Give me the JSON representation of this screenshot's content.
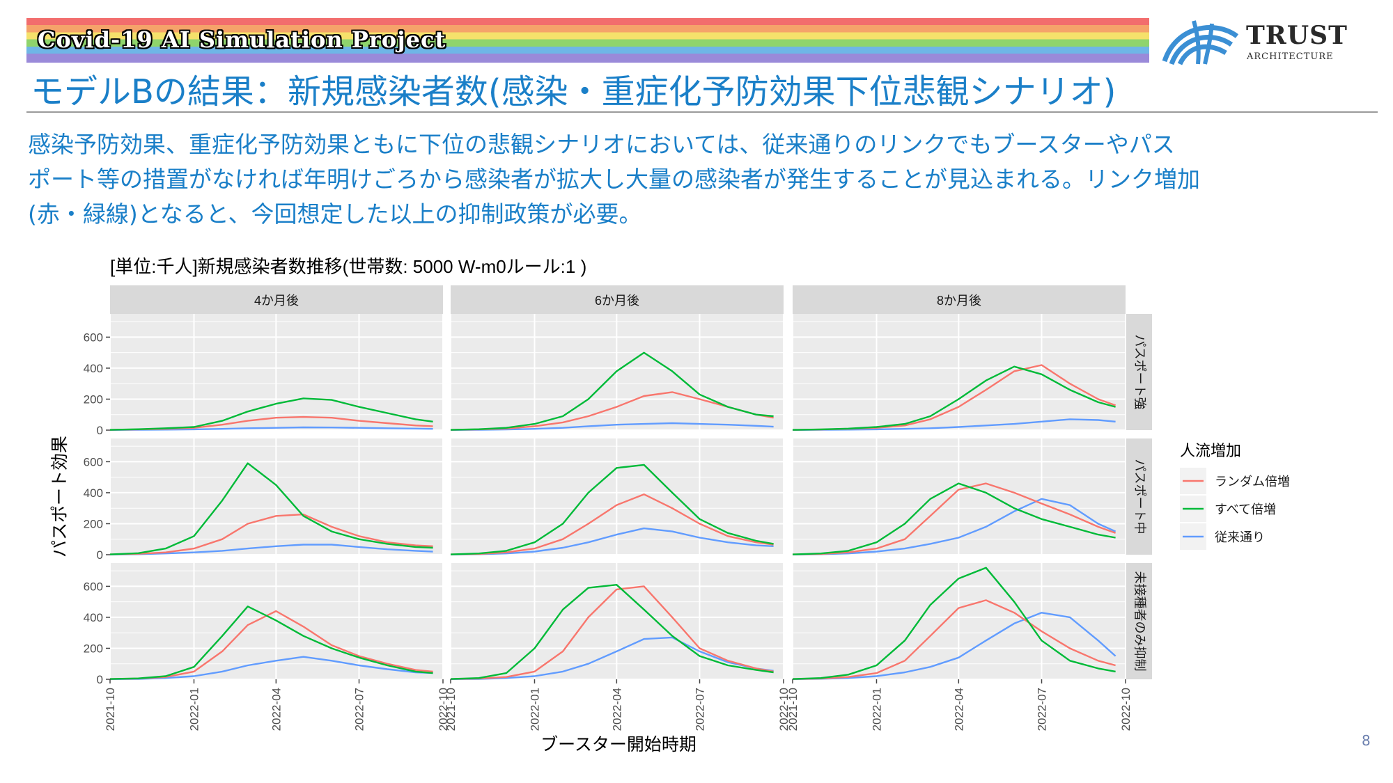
{
  "header": {
    "project_title": "Covid-19 AI Simulation Project",
    "page_title": "モデルBの結果：新規感染者数(感染・重症化予防効果下位悲観シナリオ)",
    "logo_name": "TRUST",
    "logo_sub": "ARCHITECTURE"
  },
  "lead_lines": [
    "感染予防効果、重症化予防効果ともに下位の悲観シナリオにおいては、従来通りのリンクでもブースターやパス",
    "ポート等の措置がなければ年明けごろから感染者が拡大し大量の感染者が発生することが見込まれる。リンク増加",
    "(赤・緑線)となると、今回想定した以上の抑制政策が必要。"
  ],
  "page_number": "8",
  "colors": {
    "accent": "#1a7fc8",
    "random": "#F8766D",
    "all": "#00BA38",
    "default": "#619CFF",
    "panel_bg": "#EBEBEB",
    "strip_bg": "#D9D9D9"
  },
  "chart_data": {
    "type": "line",
    "title": "[単位:千人]新規感染者数推移(世帯数: 5000 W-m0ルール:1 )",
    "xlabel": "ブースター開始時期",
    "ylabel": "パスポート効果",
    "x_ticks": [
      "2021-10",
      "2022-01",
      "2022-04",
      "2022-07",
      "2022-10"
    ],
    "y_ticks": [
      0,
      200,
      400,
      600
    ],
    "xlim": [
      "2021-10-01",
      "2022-10-01"
    ],
    "ylim": [
      0,
      750
    ],
    "grid": true,
    "columns": [
      "4か月後",
      "6か月後",
      "8か月後"
    ],
    "rows": [
      "パスポート強",
      "パスポート中",
      "未接種者のみ抑制"
    ],
    "legend": {
      "title": "人流増加",
      "position": "right",
      "entries": [
        "ランダム倍増",
        "すべて倍増",
        "従来通り"
      ]
    },
    "series_x": [
      "2021-10-01",
      "2021-11-01",
      "2021-12-01",
      "2022-01-01",
      "2022-02-01",
      "2022-03-01",
      "2022-04-01",
      "2022-05-01",
      "2022-06-01",
      "2022-07-01",
      "2022-08-01",
      "2022-09-01",
      "2022-09-20"
    ],
    "panels": [
      {
        "row": "パスポート強",
        "col": "4か月後",
        "series": [
          {
            "name": "ランダム倍増",
            "values": [
              2,
              5,
              8,
              15,
              35,
              60,
              80,
              85,
              80,
              60,
              45,
              30,
              25
            ]
          },
          {
            "name": "すべて倍増",
            "values": [
              2,
              6,
              12,
              20,
              60,
              120,
              170,
              205,
              195,
              150,
              110,
              70,
              55
            ]
          },
          {
            "name": "従来通り",
            "values": [
              1,
              2,
              3,
              5,
              8,
              12,
              15,
              18,
              17,
              15,
              12,
              10,
              8
            ]
          }
        ]
      },
      {
        "row": "パスポート強",
        "col": "6か月後",
        "series": [
          {
            "name": "ランダム倍増",
            "values": [
              2,
              5,
              10,
              25,
              50,
              90,
              150,
              220,
              245,
              200,
              150,
              100,
              80
            ]
          },
          {
            "name": "すべて倍増",
            "values": [
              2,
              6,
              15,
              40,
              90,
              200,
              380,
              500,
              380,
              230,
              150,
              100,
              90
            ]
          },
          {
            "name": "従来通り",
            "values": [
              1,
              2,
              4,
              8,
              15,
              25,
              35,
              40,
              45,
              40,
              35,
              28,
              22
            ]
          }
        ]
      },
      {
        "row": "パスポート強",
        "col": "8か月後",
        "series": [
          {
            "name": "ランダム倍増",
            "values": [
              2,
              4,
              8,
              15,
              30,
              70,
              150,
              260,
              380,
              420,
              300,
              200,
              160
            ]
          },
          {
            "name": "すべて倍増",
            "values": [
              2,
              5,
              10,
              20,
              40,
              90,
              200,
              320,
              410,
              360,
              260,
              180,
              150
            ]
          },
          {
            "name": "従来通り",
            "values": [
              1,
              2,
              3,
              5,
              8,
              12,
              20,
              30,
              40,
              55,
              70,
              65,
              55
            ]
          }
        ]
      },
      {
        "row": "パスポート中",
        "col": "4か月後",
        "series": [
          {
            "name": "ランダム倍増",
            "values": [
              2,
              6,
              15,
              40,
              100,
              200,
              250,
              260,
              180,
              120,
              80,
              60,
              55
            ]
          },
          {
            "name": "すべて倍増",
            "values": [
              2,
              10,
              40,
              120,
              350,
              590,
              450,
              250,
              150,
              100,
              70,
              50,
              45
            ]
          },
          {
            "name": "従来通り",
            "values": [
              1,
              3,
              8,
              15,
              25,
              40,
              55,
              65,
              65,
              50,
              35,
              25,
              20
            ]
          }
        ]
      },
      {
        "row": "パスポート中",
        "col": "6か月後",
        "series": [
          {
            "name": "ランダム倍増",
            "values": [
              2,
              5,
              15,
              40,
              100,
              200,
              320,
              390,
              300,
              200,
              120,
              80,
              65
            ]
          },
          {
            "name": "すべて倍増",
            "values": [
              2,
              8,
              25,
              80,
              200,
              400,
              560,
              580,
              400,
              230,
              140,
              90,
              70
            ]
          },
          {
            "name": "従来通り",
            "values": [
              1,
              3,
              8,
              20,
              45,
              80,
              130,
              170,
              150,
              110,
              80,
              60,
              55
            ]
          }
        ]
      },
      {
        "row": "パスポート中",
        "col": "8か月後",
        "series": [
          {
            "name": "ランダム倍増",
            "values": [
              2,
              5,
              15,
              40,
              100,
              250,
              420,
              460,
              400,
              330,
              260,
              180,
              140
            ]
          },
          {
            "name": "すべて倍増",
            "values": [
              2,
              8,
              25,
              80,
              200,
              360,
              460,
              400,
              300,
              230,
              180,
              130,
              110
            ]
          },
          {
            "name": "従来通り",
            "values": [
              1,
              3,
              8,
              20,
              40,
              70,
              110,
              180,
              280,
              360,
              320,
              200,
              150
            ]
          }
        ]
      },
      {
        "row": "未接種者のみ抑制",
        "col": "4か月後",
        "series": [
          {
            "name": "ランダム倍増",
            "values": [
              2,
              5,
              15,
              50,
              180,
              350,
              440,
              340,
              220,
              150,
              100,
              60,
              50
            ]
          },
          {
            "name": "すべて倍増",
            "values": [
              2,
              6,
              20,
              80,
              280,
              470,
              380,
              280,
              200,
              140,
              90,
              50,
              40
            ]
          },
          {
            "name": "従来通り",
            "values": [
              1,
              2,
              8,
              20,
              50,
              90,
              120,
              145,
              120,
              90,
              65,
              45,
              40
            ]
          }
        ]
      },
      {
        "row": "未接種者のみ抑制",
        "col": "6か月後",
        "series": [
          {
            "name": "ランダム倍増",
            "values": [
              2,
              5,
              15,
              50,
              180,
              400,
              580,
              600,
              400,
              200,
              120,
              70,
              50
            ]
          },
          {
            "name": "すべて倍増",
            "values": [
              2,
              8,
              40,
              200,
              450,
              590,
              610,
              450,
              280,
              150,
              90,
              60,
              45
            ]
          },
          {
            "name": "従来通り",
            "values": [
              1,
              2,
              8,
              20,
              50,
              100,
              180,
              260,
              270,
              180,
              110,
              70,
              55
            ]
          }
        ]
      },
      {
        "row": "未接種者のみ抑制",
        "col": "8か月後",
        "series": [
          {
            "name": "ランダム倍増",
            "values": [
              2,
              5,
              15,
              40,
              120,
              280,
              460,
              510,
              430,
              310,
              200,
              120,
              90
            ]
          },
          {
            "name": "すべて倍増",
            "values": [
              2,
              8,
              30,
              90,
              250,
              480,
              650,
              720,
              500,
              250,
              120,
              70,
              50
            ]
          },
          {
            "name": "従来通り",
            "values": [
              1,
              3,
              8,
              20,
              45,
              80,
              140,
              250,
              360,
              430,
              400,
              250,
              150
            ]
          }
        ]
      }
    ]
  }
}
